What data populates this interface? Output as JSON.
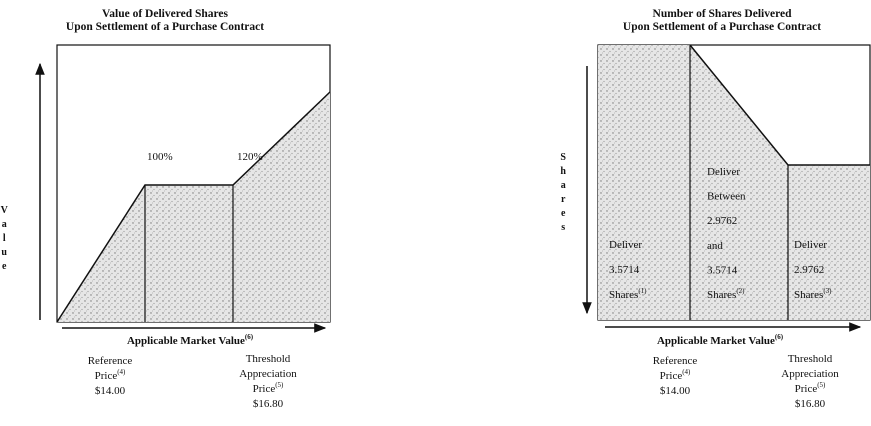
{
  "left": {
    "title": [
      "Value of Delivered Shares",
      "Upon Settlement of a Purchase Contract"
    ],
    "y_axis_label": "Value",
    "percent_labels": [
      "100%",
      "120%"
    ],
    "x_axis_label": {
      "text": "Applicable Market Value",
      "note": "(6)"
    },
    "reference_price": {
      "lines": [
        "Reference",
        "Price"
      ],
      "note": "(4)",
      "price": "$14.00"
    },
    "threshold_price": {
      "lines": [
        "Threshold",
        "Appreciation",
        "Price"
      ],
      "note": "(5)",
      "price": "$16.80"
    }
  },
  "right": {
    "title": [
      "Number of Shares Delivered",
      "Upon Settlement of a Purchase Contract"
    ],
    "y_axis_label": "Shares",
    "regions": [
      {
        "lines": [
          "Deliver",
          "3.5714",
          "Shares"
        ],
        "note": "(1)"
      },
      {
        "lines": [
          "Deliver",
          "Between",
          "2.9762",
          "and",
          "3.5714",
          "Shares"
        ],
        "note": "(2)"
      },
      {
        "lines": [
          "Deliver",
          "2.9762",
          "Shares"
        ],
        "note": "(3)"
      }
    ],
    "x_axis_label": {
      "text": "Applicable Market Value",
      "note": "(6)"
    },
    "reference_price": {
      "lines": [
        "Reference",
        "Price"
      ],
      "note": "(4)",
      "price": "$14.00"
    },
    "threshold_price": {
      "lines": [
        "Threshold",
        "Appreciation",
        "Price"
      ],
      "note": "(5)",
      "price": "$16.80"
    }
  }
}
